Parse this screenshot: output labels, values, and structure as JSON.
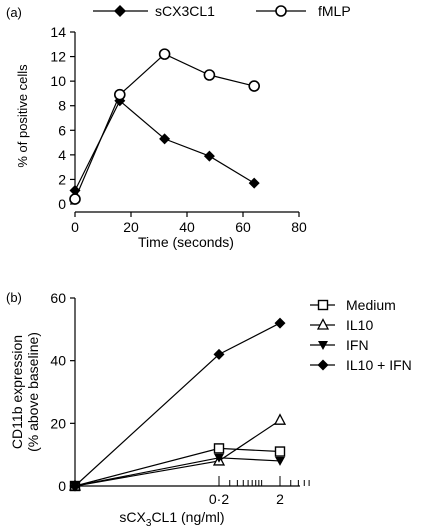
{
  "chart_data": [
    {
      "panel_label": "(a)",
      "type": "line",
      "xlabel": "Time (seconds)",
      "ylabel": "% of positive cells",
      "xlim": [
        0,
        80
      ],
      "ylim": [
        0,
        14
      ],
      "xticks": [
        "0",
        "20",
        "40",
        "60",
        "80"
      ],
      "yticks": [
        "0",
        "2",
        "4",
        "6",
        "8",
        "10",
        "12",
        "14"
      ],
      "grid": false,
      "legend_position": "top",
      "series": [
        {
          "name": "sCX3CL1",
          "marker": "filled-diamond",
          "x": [
            0,
            16,
            32,
            48,
            64
          ],
          "values": [
            1.1,
            8.4,
            5.3,
            3.9,
            1.7
          ]
        },
        {
          "name": "fMLP",
          "marker": "open-circle",
          "x": [
            0,
            16,
            32,
            48,
            64
          ],
          "values": [
            0.4,
            8.9,
            12.2,
            10.5,
            9.6
          ]
        }
      ]
    },
    {
      "panel_label": "(b)",
      "type": "line",
      "xlabel": "sCX",
      "xlabel_sub": "3",
      "xlabel_rest": "CL1 (ng/ml)",
      "ylabel": "CD11b expression",
      "ylabel2": "(% above baseline)",
      "xscale": "log",
      "x": [
        0,
        0.2,
        2
      ],
      "xticks": [
        "0·2",
        "2"
      ],
      "ylim": [
        0,
        60
      ],
      "yticks": [
        "0",
        "20",
        "40",
        "60"
      ],
      "grid": false,
      "legend_position": "right",
      "series": [
        {
          "name": "Medium",
          "marker": "open-square",
          "values": [
            0,
            12,
            11
          ]
        },
        {
          "name": "IL10",
          "marker": "open-triangle",
          "values": [
            0,
            8,
            21
          ]
        },
        {
          "name": "IFN",
          "marker": "filled-triangle-down",
          "values": [
            0,
            9,
            8
          ]
        },
        {
          "name": "IL10 + IFN",
          "marker": "filled-diamond",
          "values": [
            0,
            42,
            52
          ]
        }
      ]
    }
  ]
}
